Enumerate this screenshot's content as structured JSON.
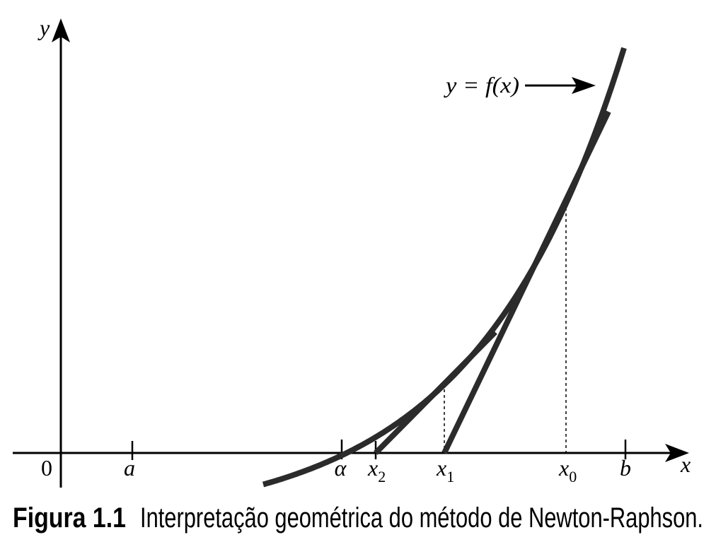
{
  "figure": {
    "axis_labels": {
      "y": "y",
      "x": "x",
      "origin": "0"
    },
    "x_axis_marks": [
      {
        "label": "a"
      },
      {
        "label": "α"
      },
      {
        "label": "x",
        "sub": "2"
      },
      {
        "label": "x",
        "sub": "1"
      },
      {
        "label": "x",
        "sub": "0"
      },
      {
        "label": "b"
      }
    ],
    "curve_label": "y = f(x)"
  },
  "caption": {
    "number": "Figura 1.1",
    "text": "Interpretação geométrica do método de Newton-Raphson."
  },
  "colors": {
    "curve": "#2b2b2b",
    "axes": "#000000",
    "background": "#ffffff"
  }
}
